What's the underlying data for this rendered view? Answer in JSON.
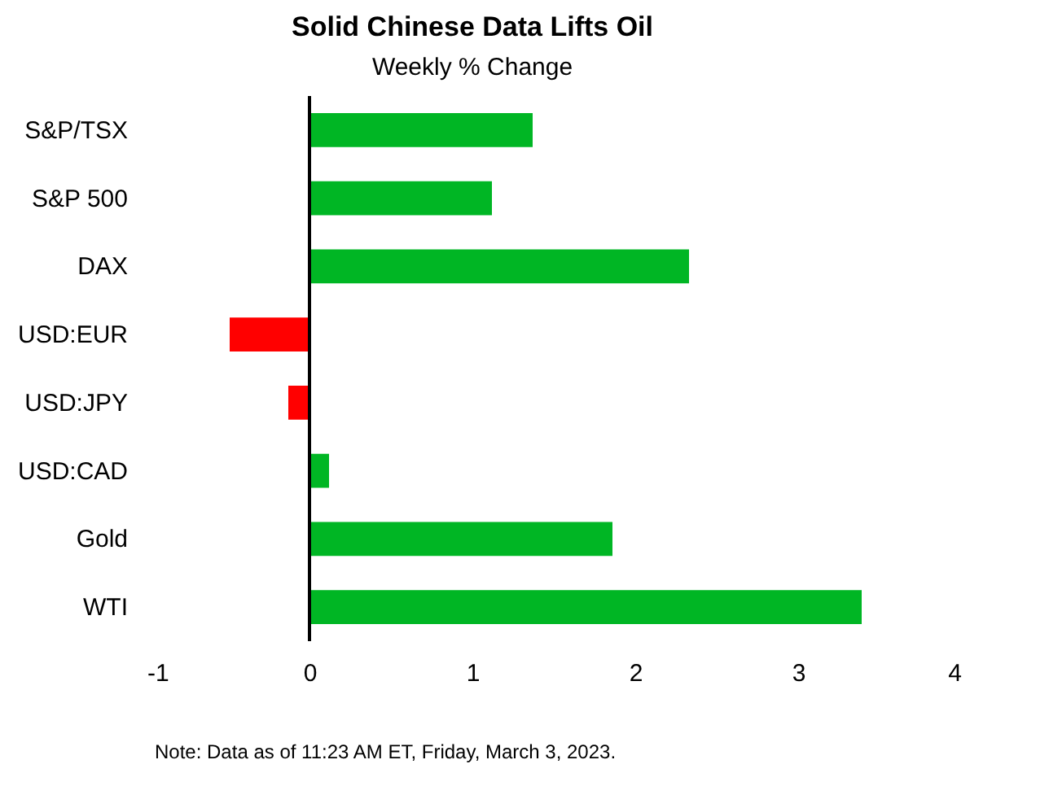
{
  "chart_data": {
    "type": "bar",
    "orientation": "horizontal",
    "title": "Solid Chinese Data Lifts Oil",
    "subtitle": "Weekly % Change",
    "categories": [
      "S&P/TSX",
      "S&P 500",
      "DAX",
      "USD:EUR",
      "USD:JPY",
      "USD:CAD",
      "Gold",
      "WTI"
    ],
    "values": [
      1.37,
      1.12,
      2.33,
      -0.49,
      -0.13,
      0.12,
      1.86,
      3.39
    ],
    "colors": [
      "#00b624",
      "#00b624",
      "#00b624",
      "#ff0000",
      "#ff0000",
      "#00b624",
      "#00b624",
      "#00b624"
    ],
    "xlim": [
      -1,
      4
    ],
    "xticks": [
      -1,
      0,
      1,
      2,
      3,
      4
    ],
    "grid": false,
    "ref_lines": [
      {
        "axis": "x",
        "value": 0,
        "color": "#000000"
      }
    ],
    "annotations": [
      "Note: Data as of 11:23 AM ET, Friday, March 3, 2023."
    ]
  }
}
